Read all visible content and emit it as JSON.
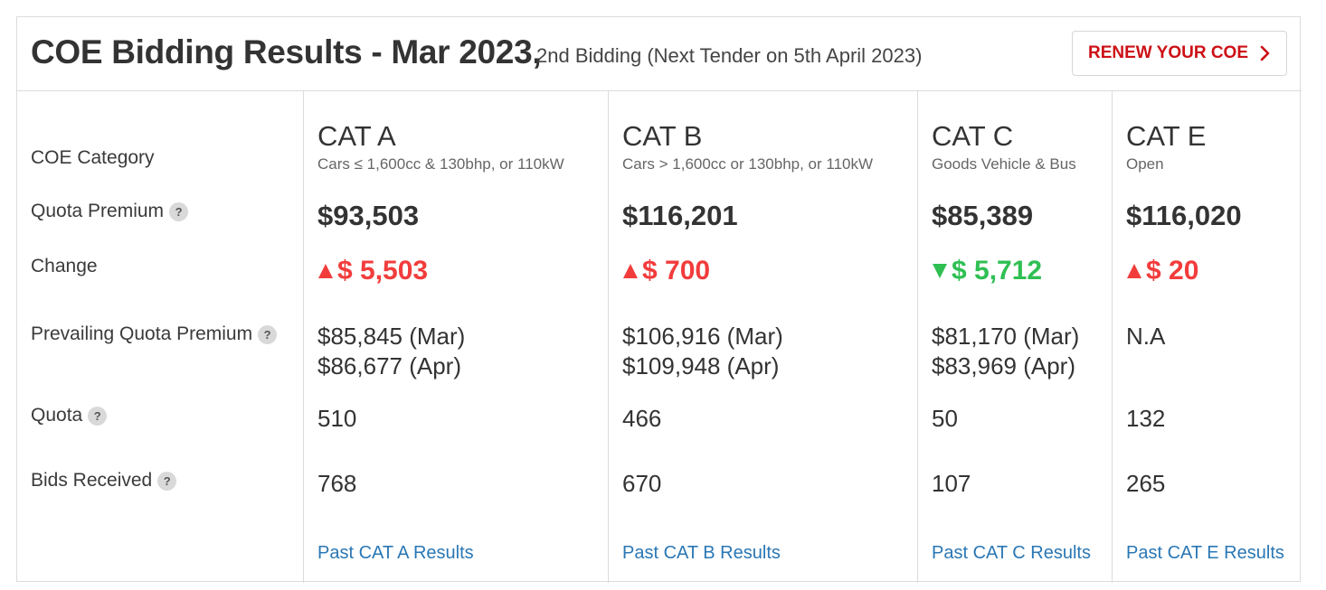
{
  "header": {
    "title": "COE Bidding Results - Mar 2023,",
    "subtitle": "2nd Bidding (Next Tender on 5th April 2023)",
    "renew_label": "RENEW YOUR COE",
    "renew_icon": "chevron-right-icon"
  },
  "labels": {
    "category": "COE Category",
    "quota_premium": "Quota Premium",
    "change": "Change",
    "prevailing": "Prevailing Quota Premium",
    "quota": "Quota",
    "bids": "Bids Received",
    "help_glyph": "?"
  },
  "colors": {
    "up": "#f23c3c",
    "down": "#2fbf53",
    "accent": "#cc1016",
    "link": "#2a77b4"
  },
  "categories": [
    {
      "name": "CAT A",
      "desc": "Cars ≤ 1,600cc & 130bhp, or 110kW",
      "premium": "$93,503",
      "change": "$ 5,503",
      "direction": "up",
      "pqp_mar": "$85,845 (Mar)",
      "pqp_apr": "$86,677 (Apr)",
      "quota": "510",
      "bids": "768",
      "link": "Past CAT A Results"
    },
    {
      "name": "CAT B",
      "desc": "Cars > 1,600cc or 130bhp, or 110kW",
      "premium": "$116,201",
      "change": "$ 700",
      "direction": "up",
      "pqp_mar": "$106,916 (Mar)",
      "pqp_apr": "$109,948 (Apr)",
      "quota": "466",
      "bids": "670",
      "link": "Past CAT B Results"
    },
    {
      "name": "CAT C",
      "desc": "Goods Vehicle & Bus",
      "premium": "$85,389",
      "change": "$ 5,712",
      "direction": "down",
      "pqp_mar": "$81,170 (Mar)",
      "pqp_apr": "$83,969 (Apr)",
      "quota": "50",
      "bids": "107",
      "link": "Past CAT C Results"
    },
    {
      "name": "CAT E",
      "desc": "Open",
      "premium": "$116,020",
      "change": "$ 20",
      "direction": "up",
      "pqp_mar": "N.A",
      "pqp_apr": "",
      "quota": "132",
      "bids": "265",
      "link": "Past CAT E Results"
    }
  ]
}
